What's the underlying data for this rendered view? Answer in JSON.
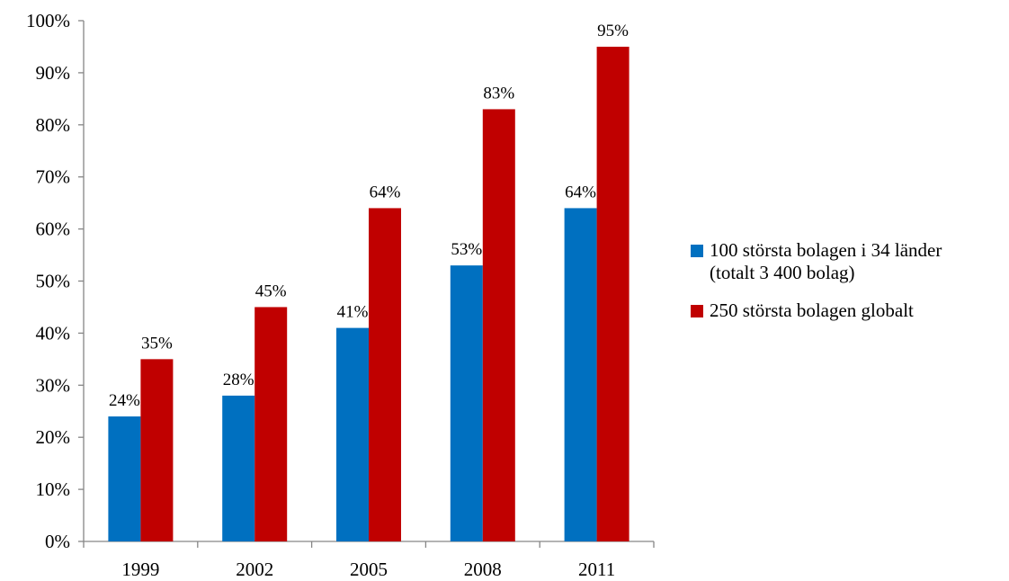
{
  "chart_data": {
    "type": "bar",
    "categories": [
      "1999",
      "2002",
      "2005",
      "2008",
      "2011"
    ],
    "series": [
      {
        "name": "100 största bolagen i 34 länder (totalt 3 400 bolag)",
        "name_lines": [
          "100 största bolagen i 34 länder",
          "(totalt 3 400 bolag)"
        ],
        "values": [
          24,
          28,
          41,
          53,
          64
        ],
        "labels": [
          "24%",
          "28%",
          "41%",
          "53%",
          "64%"
        ],
        "color": "#0070C0"
      },
      {
        "name": "250 största bolagen globalt",
        "name_lines": [
          "250 största bolagen globalt"
        ],
        "values": [
          35,
          45,
          64,
          83,
          95
        ],
        "labels": [
          "35%",
          "45%",
          "64%",
          "83%",
          "95%"
        ],
        "color": "#C00000"
      }
    ],
    "ylim": [
      0,
      100
    ],
    "yticks": [
      "0%",
      "10%",
      "20%",
      "30%",
      "40%",
      "50%",
      "60%",
      "70%",
      "80%",
      "90%",
      "100%"
    ],
    "title": "",
    "xlabel": "",
    "ylabel": "",
    "grid": false,
    "legend_position": "right"
  }
}
